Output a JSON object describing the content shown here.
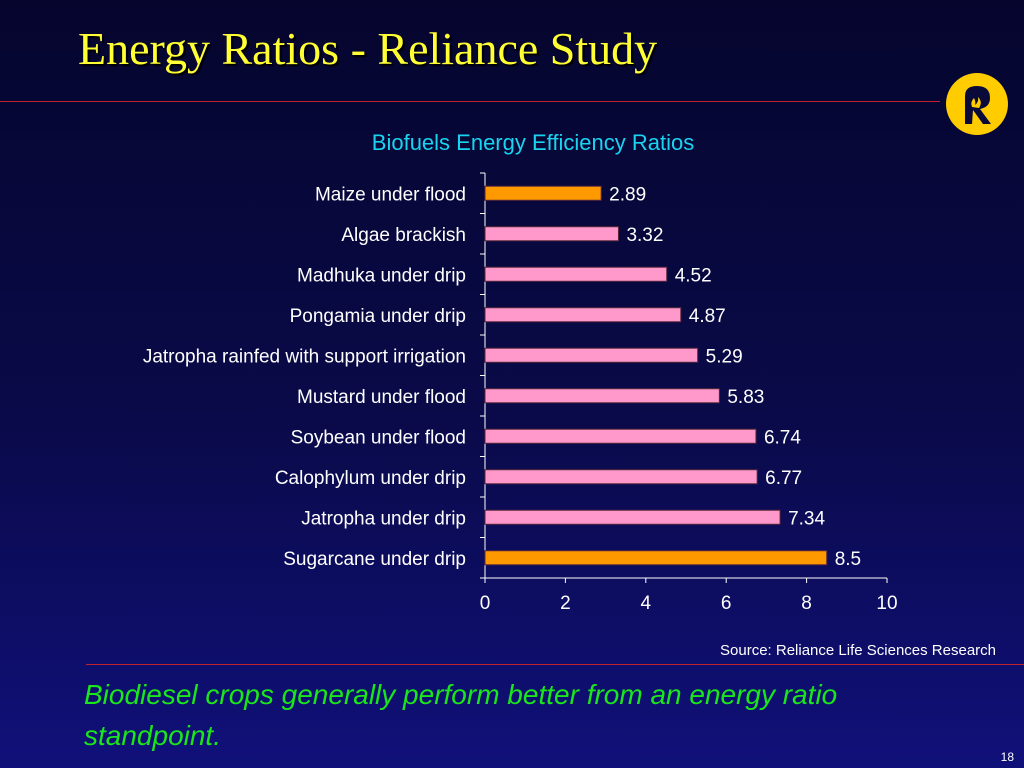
{
  "slide": {
    "title": "Energy Ratios - Reliance Study",
    "source": "Source: Reliance Life Sciences Research",
    "caption": "Biodiesel crops generally perform better from an energy ratio standpoint.",
    "page_number": "18"
  },
  "colors": {
    "title": "#ffff33",
    "chart_title": "#19d3f0",
    "caption": "#1be51b",
    "bar_highlight": "#ff9900",
    "bar_default": "#ff99cc",
    "rule": "#c0232c",
    "logo_fill": "#ffcc00"
  },
  "logo": {
    "icon": "reliance-logo-icon"
  },
  "chart_data": {
    "type": "bar",
    "orientation": "horizontal",
    "title": "Biofuels Energy Efficiency Ratios",
    "categories": [
      "Maize under flood",
      "Algae brackish",
      "Madhuka under drip",
      "Pongamia under drip",
      "Jatropha rainfed with support irrigation",
      "Mustard under flood",
      "Soybean under flood",
      "Calophylum under drip",
      "Jatropha under drip",
      "Sugarcane under drip"
    ],
    "values": [
      2.89,
      3.32,
      4.52,
      4.87,
      5.29,
      5.83,
      6.74,
      6.77,
      7.34,
      8.5
    ],
    "data_labels": [
      "2.89",
      "3.32",
      "4.52",
      "4.87",
      "5.29",
      "5.83",
      "6.74",
      "6.77",
      "7.34",
      "8.5"
    ],
    "highlighted": [
      "Maize under flood",
      "Sugarcane under drip"
    ],
    "xlim": [
      0,
      10
    ],
    "x_ticks": [
      0,
      2,
      4,
      6,
      8,
      10
    ],
    "grid": false,
    "legend": "none"
  }
}
